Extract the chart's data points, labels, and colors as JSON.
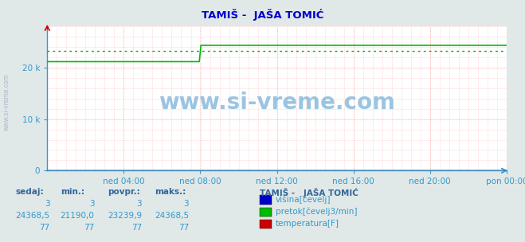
{
  "title": "TAMIŠ -  JAŠA TOMIĆ",
  "bg_color": "#e0e8e8",
  "plot_bg_color": "#ffffff",
  "grid_color_red": "#ffaaaa",
  "grid_color_pink": "#ffdddd",
  "x_labels": [
    "ned 04:00",
    "ned 08:00",
    "ned 12:00",
    "ned 16:00",
    "ned 20:00",
    "pon 00:00"
  ],
  "x_ticks_frac": [
    0.1667,
    0.3333,
    0.5,
    0.6667,
    0.8333,
    1.0
  ],
  "y_ticks": [
    0,
    10000,
    20000
  ],
  "y_tick_labels": [
    "0",
    "10 k",
    "20 k"
  ],
  "ylim": [
    0,
    28000
  ],
  "n_points": 288,
  "pretok_base": 21190,
  "pretok_jump_at": 96,
  "pretok_after": 24368,
  "pretok_avg": 23240,
  "visina_val": 3,
  "temp_val": 77,
  "pretok_color": "#00bb00",
  "visina_color": "#0000cc",
  "temp_color": "#cc0000",
  "pretok_avg_color": "#00bb00",
  "watermark_text": "www.si-vreme.com",
  "watermark_color": "#88bbdd",
  "left_label": "www.si-vreme.com",
  "title_color": "#0000cc",
  "tick_color": "#3399cc",
  "table_color": "#3399cc",
  "table_bold_color": "#336699",
  "legend_title": "TAMIŠ -   JAŠA TOMIĆ",
  "legend_items": [
    "višina[čevelj]",
    "pretok[čevelj3/min]",
    "temperatura[F]"
  ],
  "legend_colors": [
    "#0000cc",
    "#00bb00",
    "#cc0000"
  ],
  "table_headers": [
    "sedaj:",
    "min.:",
    "povpr.:",
    "maks.:"
  ],
  "row1": [
    "3",
    "3",
    "3",
    "3"
  ],
  "row2": [
    "24368,5",
    "21190,0",
    "23239,9",
    "24368,5"
  ],
  "row3": [
    "77",
    "77",
    "77",
    "77"
  ]
}
